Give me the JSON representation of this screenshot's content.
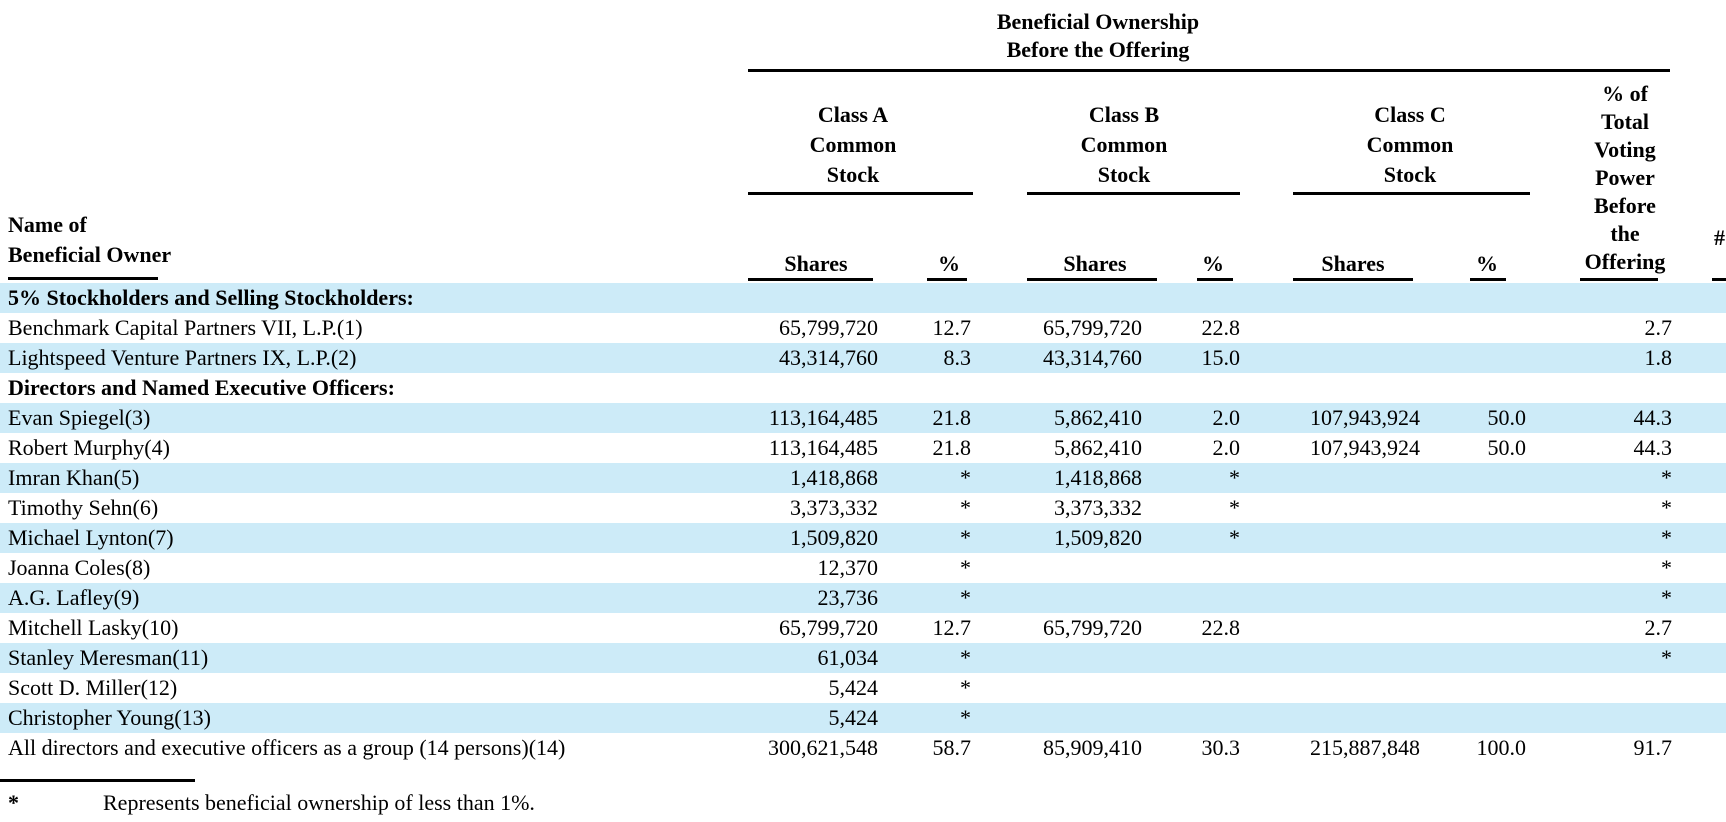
{
  "colors": {
    "row_band": "#CDEBF8",
    "text": "#000000",
    "rule": "#000000"
  },
  "header": {
    "group_title_line1": "Beneficial Ownership",
    "group_title_line2": "Before the Offering",
    "name_line1": "Name of",
    "name_line2": "Beneficial Owner",
    "class_a_lines": [
      "Class A",
      "Common",
      "Stock"
    ],
    "class_b_lines": [
      "Class B",
      "Common",
      "Stock"
    ],
    "class_c_lines": [
      "Class C",
      "Common",
      "Stock"
    ],
    "voting_lines": [
      "% of",
      "Total",
      "Voting",
      "Power",
      "Before",
      "the",
      "Offering"
    ],
    "shares_label": "Shares",
    "percent_label": "%",
    "clipped_next_column": "#"
  },
  "rows": [
    {
      "name": "5% Stockholders and Selling Stockholders:",
      "bold": true,
      "shaded": true,
      "values": [
        "",
        "",
        "",
        "",
        "",
        "",
        ""
      ]
    },
    {
      "name": "Benchmark Capital Partners VII, L.P.(1)",
      "bold": false,
      "shaded": false,
      "values": [
        "65,799,720",
        "12.7",
        "65,799,720",
        "22.8",
        "",
        "",
        "2.7"
      ]
    },
    {
      "name": "Lightspeed Venture Partners IX, L.P.(2)",
      "bold": false,
      "shaded": true,
      "values": [
        "43,314,760",
        "8.3",
        "43,314,760",
        "15.0",
        "",
        "",
        "1.8"
      ]
    },
    {
      "name": "Directors and Named Executive Officers:",
      "bold": true,
      "shaded": false,
      "values": [
        "",
        "",
        "",
        "",
        "",
        "",
        ""
      ]
    },
    {
      "name": "Evan Spiegel(3)",
      "bold": false,
      "shaded": true,
      "values": [
        "113,164,485",
        "21.8",
        "5,862,410",
        "2.0",
        "107,943,924",
        "50.0",
        "44.3"
      ]
    },
    {
      "name": "Robert Murphy(4)",
      "bold": false,
      "shaded": false,
      "values": [
        "113,164,485",
        "21.8",
        "5,862,410",
        "2.0",
        "107,943,924",
        "50.0",
        "44.3"
      ]
    },
    {
      "name": "Imran Khan(5)",
      "bold": false,
      "shaded": true,
      "values": [
        "1,418,868",
        "*",
        "1,418,868",
        "*",
        "",
        "",
        "*"
      ]
    },
    {
      "name": "Timothy Sehn(6)",
      "bold": false,
      "shaded": false,
      "values": [
        "3,373,332",
        "*",
        "3,373,332",
        "*",
        "",
        "",
        "*"
      ]
    },
    {
      "name": "Michael Lynton(7)",
      "bold": false,
      "shaded": true,
      "values": [
        "1,509,820",
        "*",
        "1,509,820",
        "*",
        "",
        "",
        "*"
      ]
    },
    {
      "name": "Joanna Coles(8)",
      "bold": false,
      "shaded": false,
      "values": [
        "12,370",
        "*",
        "",
        "",
        "",
        "",
        "*"
      ]
    },
    {
      "name": "A.G. Lafley(9)",
      "bold": false,
      "shaded": true,
      "values": [
        "23,736",
        "*",
        "",
        "",
        "",
        "",
        "*"
      ]
    },
    {
      "name": "Mitchell Lasky(10)",
      "bold": false,
      "shaded": false,
      "values": [
        "65,799,720",
        "12.7",
        "65,799,720",
        "22.8",
        "",
        "",
        "2.7"
      ]
    },
    {
      "name": "Stanley Meresman(11)",
      "bold": false,
      "shaded": true,
      "values": [
        "61,034",
        "*",
        "",
        "",
        "",
        "",
        "*"
      ]
    },
    {
      "name": "Scott D. Miller(12)",
      "bold": false,
      "shaded": false,
      "values": [
        "5,424",
        "*",
        "",
        "",
        "",
        "",
        ""
      ]
    },
    {
      "name": "Christopher Young(13)",
      "bold": false,
      "shaded": true,
      "values": [
        "5,424",
        "*",
        "",
        "",
        "",
        "",
        ""
      ]
    },
    {
      "name": "All directors and executive officers as a group (14 persons)(14)",
      "bold": false,
      "shaded": false,
      "values": [
        "300,621,548",
        "58.7",
        "85,909,410",
        "30.3",
        "215,887,848",
        "100.0",
        "91.7"
      ]
    }
  ],
  "footnote": {
    "symbol": "*",
    "text": "Represents beneficial ownership of less than 1%."
  }
}
